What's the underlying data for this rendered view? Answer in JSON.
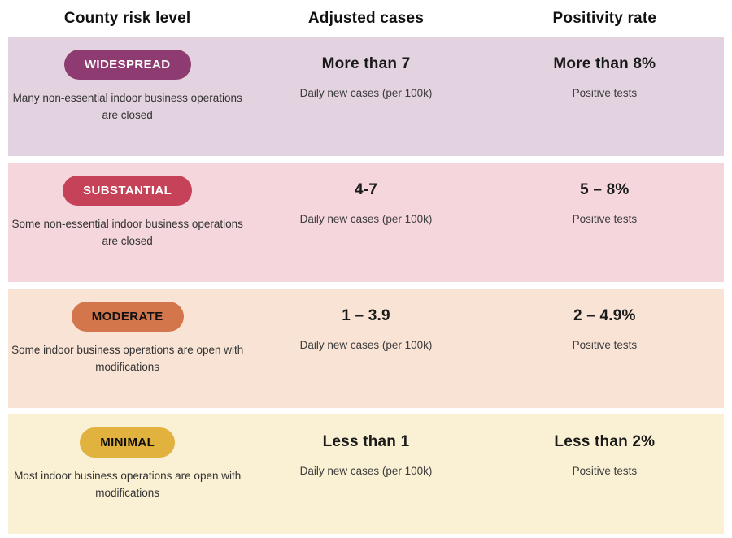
{
  "header": {
    "columns": {
      "risk": "County risk level",
      "cases": "Adjusted cases",
      "positivity": "Positivity rate"
    }
  },
  "rows": [
    {
      "tier": "WIDESPREAD",
      "row_bg": "#E3D2DF",
      "badge_bg": "#8D3B70",
      "badge_color": "#FFFFFF",
      "description": "Many non-essential indoor business operations are closed",
      "cases_value": "More than 7",
      "cases_label": "Daily new cases (per 100k)",
      "positivity_value": "More than 8%",
      "positivity_label": "Positive tests"
    },
    {
      "tier": "SUBSTANTIAL",
      "row_bg": "#F4D6DC",
      "badge_bg": "#C64258",
      "badge_color": "#FFFFFF",
      "description": "Some non-essential indoor business operations are closed",
      "cases_value": "4-7",
      "cases_label": "Daily new cases (per 100k)",
      "positivity_value": "5 – 8%",
      "positivity_label": "Positive tests"
    },
    {
      "tier": "MODERATE",
      "row_bg": "#F8E3D4",
      "badge_bg": "#D3764C",
      "badge_color": "#101010",
      "description": "Some indoor business operations are open with modifications",
      "cases_value": "1 – 3.9",
      "cases_label": "Daily new cases (per 100k)",
      "positivity_value": "2 – 4.9%",
      "positivity_label": "Positive tests"
    },
    {
      "tier": "MINIMAL",
      "row_bg": "#FAF0D3",
      "badge_bg": "#E2B23F",
      "badge_color": "#101010",
      "description": "Most indoor business operations are open with modifications",
      "cases_value": "Less than 1",
      "cases_label": "Daily new cases (per 100k)",
      "positivity_value": "Less than 2%",
      "positivity_label": "Positive tests"
    }
  ],
  "chart_data": {
    "type": "table",
    "columns": [
      "County risk level",
      "Adjusted cases (Daily new cases per 100k)",
      "Positivity rate (Positive tests)"
    ],
    "rows": [
      [
        "WIDESPREAD",
        "More than 7",
        "More than 8%"
      ],
      [
        "SUBSTANTIAL",
        "4-7",
        "5 – 8%"
      ],
      [
        "MODERATE",
        "1 – 3.9",
        "2 – 4.9%"
      ],
      [
        "MINIMAL",
        "Less than 1",
        "Less than 2%"
      ]
    ],
    "row_notes": [
      "Many non-essential indoor business operations are closed",
      "Some non-essential indoor business operations are closed",
      "Some indoor business operations are open with modifications",
      "Most indoor business operations are open with modifications"
    ],
    "row_colors": [
      "#8D3B70",
      "#C64258",
      "#D3764C",
      "#E2B23F"
    ]
  }
}
